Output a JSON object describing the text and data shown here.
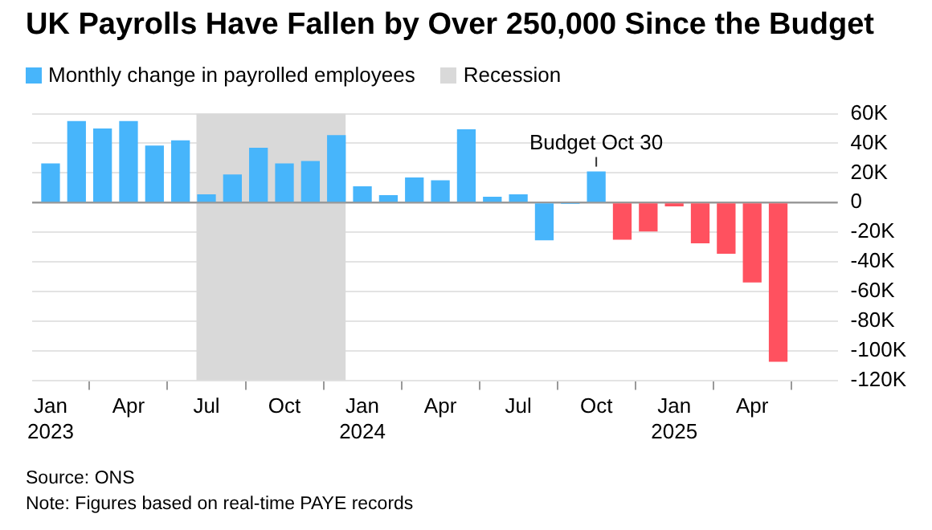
{
  "chart_data": {
    "type": "bar",
    "title": "UK Payrolls Have Fallen by Over 250,000 Since the Budget",
    "x": [
      "2023-01",
      "2023-02",
      "2023-03",
      "2023-04",
      "2023-05",
      "2023-06",
      "2023-07",
      "2023-08",
      "2023-09",
      "2023-10",
      "2023-11",
      "2023-12",
      "2024-01",
      "2024-02",
      "2024-03",
      "2024-04",
      "2024-05",
      "2024-06",
      "2024-07",
      "2024-08",
      "2024-09",
      "2024-10",
      "2024-11",
      "2024-12",
      "2025-01",
      "2025-02",
      "2025-03",
      "2025-04",
      "2025-05"
    ],
    "series": [
      {
        "name": "Monthly change in payrolled employees",
        "color": "#47b5fb",
        "colors": [
          "#47b5fb",
          "#47b5fb",
          "#47b5fb",
          "#47b5fb",
          "#47b5fb",
          "#47b5fb",
          "#47b5fb",
          "#47b5fb",
          "#47b5fb",
          "#47b5fb",
          "#47b5fb",
          "#47b5fb",
          "#47b5fb",
          "#47b5fb",
          "#47b5fb",
          "#47b5fb",
          "#47b5fb",
          "#47b5fb",
          "#47b5fb",
          "#47b5fb",
          "#47b5fb",
          "#47b5fb",
          "#ff515f",
          "#ff515f",
          "#ff515f",
          "#ff515f",
          "#ff515f",
          "#ff515f",
          "#ff515f"
        ],
        "values": [
          26500,
          55000,
          50000,
          55000,
          38500,
          42000,
          5500,
          19000,
          37000,
          26500,
          28000,
          45500,
          11000,
          5000,
          17000,
          15000,
          49500,
          4000,
          5500,
          -25500,
          -1000,
          21000,
          -25000,
          -19500,
          -2500,
          -27500,
          -34500,
          -54000,
          -107500
        ]
      }
    ],
    "bands": [
      {
        "axis": "x",
        "from": "2023-06-20",
        "to": "2023-12-12",
        "label": "Recession",
        "color": "#d9d9d9"
      }
    ],
    "annotations": [
      {
        "text": "Budget Oct 30",
        "x": "2024-10",
        "y": 21000
      },
      "Source: ONS",
      "Note: Figures based on real-time PAYE records"
    ],
    "xlim": [
      "2022-12-10",
      "2025-07-10"
    ],
    "xticks": [
      {
        "value": "2023-01",
        "label": "Jan 2023"
      },
      {
        "value": "2023-04",
        "label": "Apr"
      },
      {
        "value": "2023-07",
        "label": "Jul"
      },
      {
        "value": "2023-10",
        "label": "Oct"
      },
      {
        "value": "2024-01",
        "label": "Jan 2024"
      },
      {
        "value": "2024-04",
        "label": "Apr"
      },
      {
        "value": "2024-07",
        "label": "Jul"
      },
      {
        "value": "2024-10",
        "label": "Oct"
      },
      {
        "value": "2025-01",
        "label": "Jan 2025"
      },
      {
        "value": "2025-04",
        "label": "Apr"
      }
    ],
    "ylim": [
      -120000,
      60000
    ],
    "yticks": [
      {
        "value": -120000,
        "label": "-120K"
      },
      {
        "value": -100000,
        "label": "-100K"
      },
      {
        "value": -80000,
        "label": "-80K"
      },
      {
        "value": -60000,
        "label": "-60K"
      },
      {
        "value": -40000,
        "label": "-40K"
      },
      {
        "value": -20000,
        "label": "-20K"
      },
      0,
      {
        "value": 20000,
        "label": "20K"
      },
      {
        "value": 40000,
        "label": "40K"
      },
      {
        "value": 60000,
        "label": "60K"
      }
    ],
    "grid": "y",
    "legend": "top left"
  }
}
